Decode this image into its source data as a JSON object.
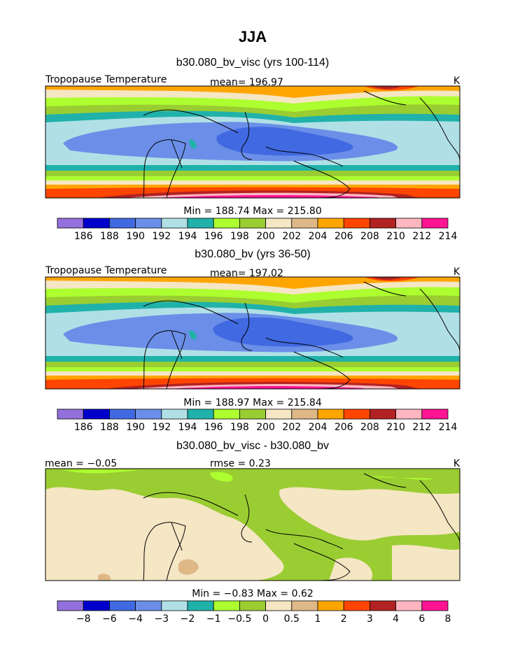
{
  "main_title": "JJA",
  "chart_data": [
    {
      "type": "heatmap",
      "title": "b30.080_bv_visc (yrs 100-114)",
      "variable_label": "Tropopause Temperature",
      "mean_text": "mean= 196.97",
      "unit": "K",
      "minmax_text": "Min = 188.74 Max = 215.80",
      "mean": 196.97,
      "min": 188.74,
      "max": 215.8,
      "colorbar_labels": [
        "186",
        "188",
        "190",
        "192",
        "194",
        "196",
        "198",
        "200",
        "202",
        "204",
        "206",
        "208",
        "210",
        "212",
        "214"
      ],
      "colorbar_colors": [
        "#9370db",
        "#0000cd",
        "#4169e1",
        "#6b8fe8",
        "#b0e0e6",
        "#20b2aa",
        "#adff2f",
        "#9acd32",
        "#f5e6c4",
        "#deb887",
        "#ffa500",
        "#ff4500",
        "#b22222",
        "#ffb6c1",
        "#ff1493"
      ]
    },
    {
      "type": "heatmap",
      "title": "b30.080_bv (yrs 36-50)",
      "variable_label": "Tropopause Temperature",
      "mean_text": "mean= 197.02",
      "unit": "K",
      "minmax_text": "Min = 188.97 Max = 215.84",
      "mean": 197.02,
      "min": 188.97,
      "max": 215.84,
      "colorbar_labels": [
        "186",
        "188",
        "190",
        "192",
        "194",
        "196",
        "198",
        "200",
        "202",
        "204",
        "206",
        "208",
        "210",
        "212",
        "214"
      ],
      "colorbar_colors": [
        "#9370db",
        "#0000cd",
        "#4169e1",
        "#6b8fe8",
        "#b0e0e6",
        "#20b2aa",
        "#adff2f",
        "#9acd32",
        "#f5e6c4",
        "#deb887",
        "#ffa500",
        "#ff4500",
        "#b22222",
        "#ffb6c1",
        "#ff1493"
      ]
    },
    {
      "type": "heatmap",
      "title": "b30.080_bv_visc - b30.080_bv",
      "mean_text": "mean = −0.05",
      "rmse_text": "rmse = 0.23",
      "unit": "K",
      "minmax_text": "Min = −0.83 Max = 0.62",
      "mean": -0.05,
      "rmse": 0.23,
      "min": -0.83,
      "max": 0.62,
      "colorbar_labels": [
        "−8",
        "−6",
        "−4",
        "−3",
        "−2",
        "−1",
        "−0.5",
        "0",
        "0.5",
        "1",
        "2",
        "3",
        "4",
        "6",
        "8"
      ],
      "colorbar_colors": [
        "#9370db",
        "#0000cd",
        "#4169e1",
        "#6b8fe8",
        "#b0e0e6",
        "#20b2aa",
        "#adff2f",
        "#9acd32",
        "#f5e6c4",
        "#deb887",
        "#ffa500",
        "#ff4500",
        "#b22222",
        "#ffb6c1",
        "#ff1493"
      ]
    }
  ]
}
